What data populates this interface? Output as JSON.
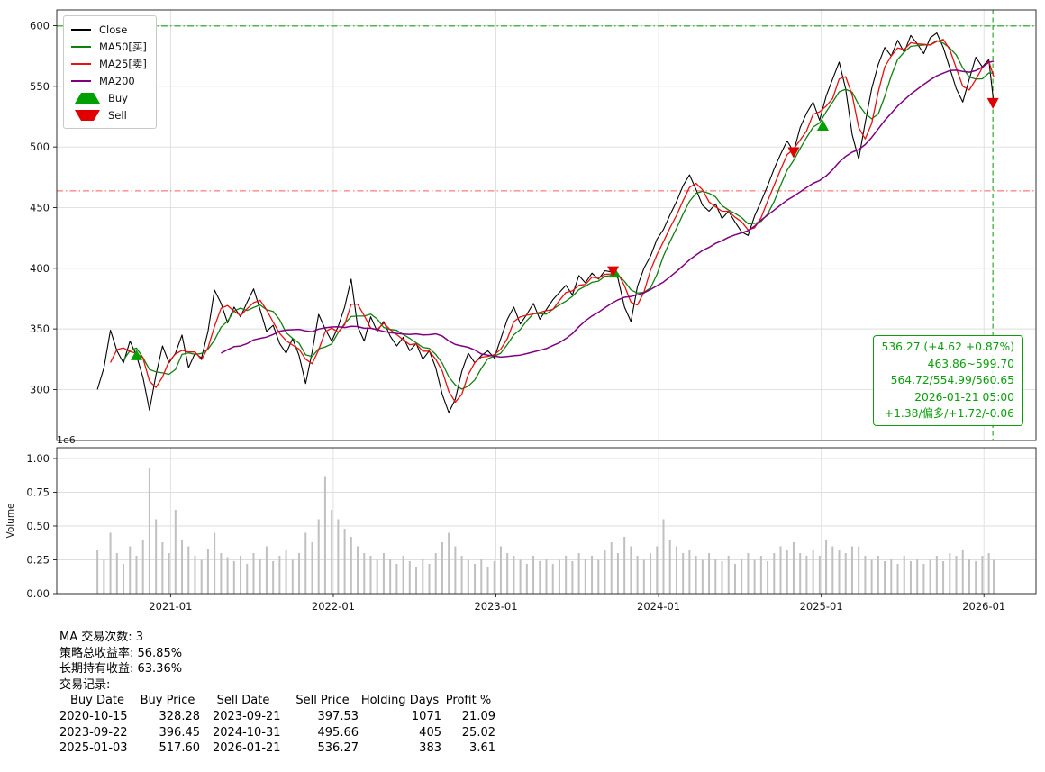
{
  "chart_data": [
    {
      "type": "line",
      "title": "",
      "xlim": [
        2020.3,
        2026.32
      ],
      "ylim": [
        258,
        613
      ],
      "yticks": [
        300,
        350,
        400,
        450,
        500,
        550,
        600
      ],
      "xticks": {
        "values": [
          2021,
          2022,
          2023,
          2024,
          2025,
          2026
        ],
        "labels": [
          "2021-01",
          "2022-01",
          "2023-01",
          "2024-01",
          "2025-01",
          "2026-01"
        ]
      },
      "grid": true,
      "x": [
        2020.55,
        2020.59,
        2020.63,
        2020.67,
        2020.71,
        2020.75,
        2020.79,
        2020.83,
        2020.87,
        2020.91,
        2020.95,
        2020.99,
        2021.03,
        2021.07,
        2021.11,
        2021.15,
        2021.19,
        2021.23,
        2021.27,
        2021.31,
        2021.35,
        2021.39,
        2021.43,
        2021.47,
        2021.51,
        2021.55,
        2021.59,
        2021.63,
        2021.67,
        2021.71,
        2021.75,
        2021.79,
        2021.83,
        2021.87,
        2021.91,
        2021.95,
        2021.99,
        2022.03,
        2022.07,
        2022.11,
        2022.15,
        2022.19,
        2022.23,
        2022.27,
        2022.31,
        2022.35,
        2022.39,
        2022.43,
        2022.47,
        2022.51,
        2022.55,
        2022.59,
        2022.63,
        2022.67,
        2022.71,
        2022.75,
        2022.79,
        2022.83,
        2022.87,
        2022.91,
        2022.95,
        2022.99,
        2023.03,
        2023.07,
        2023.11,
        2023.15,
        2023.19,
        2023.23,
        2023.27,
        2023.31,
        2023.35,
        2023.39,
        2023.43,
        2023.47,
        2023.51,
        2023.55,
        2023.59,
        2023.63,
        2023.67,
        2023.71,
        2023.75,
        2023.79,
        2023.83,
        2023.87,
        2023.91,
        2023.95,
        2023.99,
        2024.03,
        2024.07,
        2024.11,
        2024.15,
        2024.19,
        2024.23,
        2024.27,
        2024.31,
        2024.35,
        2024.39,
        2024.43,
        2024.47,
        2024.51,
        2024.55,
        2024.59,
        2024.63,
        2024.67,
        2024.71,
        2024.75,
        2024.79,
        2024.83,
        2024.87,
        2024.91,
        2024.95,
        2024.99,
        2025.03,
        2025.07,
        2025.11,
        2025.15,
        2025.19,
        2025.23,
        2025.27,
        2025.31,
        2025.35,
        2025.39,
        2025.43,
        2025.47,
        2025.51,
        2025.55,
        2025.59,
        2025.63,
        2025.67,
        2025.71,
        2025.75,
        2025.79,
        2025.83,
        2025.87,
        2025.91,
        2025.95,
        2025.99,
        2026.03,
        2026.06
      ],
      "series": [
        {
          "name": "Close",
          "color": "#000000",
          "values": [
            300,
            318,
            349,
            332,
            322,
            340,
            328,
            310,
            283,
            312,
            336,
            322,
            330,
            345,
            318,
            330,
            326,
            348,
            382,
            371,
            355,
            368,
            360,
            372,
            383,
            366,
            348,
            353,
            338,
            330,
            342,
            328,
            305,
            331,
            362,
            350,
            340,
            352,
            368,
            391,
            352,
            340,
            360,
            348,
            356,
            344,
            336,
            343,
            332,
            338,
            325,
            332,
            318,
            296,
            281,
            292,
            315,
            330,
            322,
            328,
            332,
            326,
            342,
            358,
            368,
            354,
            362,
            371,
            358,
            366,
            374,
            380,
            386,
            378,
            394,
            388,
            396,
            391,
            398,
            397,
            392,
            368,
            356,
            385,
            400,
            410,
            424,
            432,
            444,
            455,
            468,
            477,
            465,
            452,
            447,
            453,
            441,
            447,
            438,
            430,
            427,
            443,
            455,
            468,
            482,
            494,
            505,
            496,
            516,
            528,
            537,
            522,
            542,
            556,
            570,
            548,
            510,
            490,
            520,
            548,
            568,
            582,
            575,
            588,
            578,
            592,
            585,
            577,
            590,
            594,
            582,
            565,
            548,
            537,
            556,
            574,
            566,
            572,
            536
          ]
        },
        {
          "name": "MA50[买]",
          "color": "#108010",
          "derived_from": "Close",
          "rolling_window_points": 5
        },
        {
          "name": "MA25[卖]",
          "color": "#e81010",
          "derived_from": "Close",
          "rolling_window_points": 3
        },
        {
          "name": "MA200",
          "color": "#800080",
          "derived_from": "Close",
          "rolling_window_points": 20
        }
      ],
      "markers": [
        {
          "name": "Buy",
          "shape": "triangle-up",
          "color": "#00a000",
          "points": [
            [
              2020.79,
              328.28
            ],
            [
              2023.73,
              396.45
            ],
            [
              2025.01,
              517.6
            ]
          ]
        },
        {
          "name": "Sell",
          "shape": "triangle-down",
          "color": "#e00000",
          "points": [
            [
              2023.72,
              397.53
            ],
            [
              2024.83,
              495.66
            ],
            [
              2026.055,
              536.27
            ]
          ]
        }
      ],
      "hlines": [
        {
          "value": 599.7,
          "color": "#00a000",
          "style": "dashdot"
        },
        {
          "value": 463.86,
          "color": "#ff5a5a",
          "style": "dashdot"
        }
      ],
      "vline": {
        "x": 2026.055,
        "color": "#2daa2d",
        "style": "dashed"
      },
      "legend": {
        "items": [
          {
            "label": "Close",
            "type": "line",
            "color": "#000000"
          },
          {
            "label": "MA50[买]",
            "type": "line",
            "color": "#108010"
          },
          {
            "label": "MA25[卖]",
            "type": "line",
            "color": "#e81010"
          },
          {
            "label": "MA200",
            "type": "line",
            "color": "#800080"
          },
          {
            "label": "Buy",
            "type": "triangle-up",
            "color": "#00a000"
          },
          {
            "label": "Sell",
            "type": "triangle-down",
            "color": "#e00000"
          }
        ]
      },
      "annotation": {
        "color": "#0a9e0a",
        "lines": [
          "536.27 (+4.62 +0.87%)",
          "463.86~599.70",
          "564.72/554.99/560.65",
          "2026-01-21 05:00",
          "+1.38/偏多/+1.72/-0.06"
        ]
      }
    },
    {
      "type": "bar",
      "ylabel": "Volume",
      "offset_label": "1e6",
      "bar_color": "#c0c0c0",
      "x_ref": "shared-with-price-chart",
      "ylim": [
        0,
        1.08
      ],
      "yticks": {
        "values": [
          0,
          0.25,
          0.5,
          0.75,
          1.0
        ],
        "labels": [
          "0.00",
          "0.25",
          "0.50",
          "0.75",
          "1.00"
        ]
      },
      "values": [
        0.32,
        0.25,
        0.45,
        0.3,
        0.22,
        0.35,
        0.28,
        0.4,
        0.93,
        0.55,
        0.38,
        0.3,
        0.62,
        0.4,
        0.35,
        0.28,
        0.25,
        0.33,
        0.45,
        0.3,
        0.27,
        0.24,
        0.28,
        0.22,
        0.3,
        0.26,
        0.35,
        0.24,
        0.28,
        0.32,
        0.25,
        0.3,
        0.45,
        0.38,
        0.55,
        0.87,
        0.62,
        0.55,
        0.48,
        0.42,
        0.35,
        0.3,
        0.28,
        0.25,
        0.3,
        0.26,
        0.22,
        0.28,
        0.24,
        0.2,
        0.26,
        0.22,
        0.3,
        0.38,
        0.45,
        0.35,
        0.28,
        0.25,
        0.22,
        0.26,
        0.2,
        0.24,
        0.35,
        0.3,
        0.28,
        0.25,
        0.22,
        0.28,
        0.24,
        0.26,
        0.22,
        0.25,
        0.28,
        0.24,
        0.3,
        0.26,
        0.28,
        0.25,
        0.32,
        0.38,
        0.3,
        0.42,
        0.35,
        0.28,
        0.25,
        0.3,
        0.35,
        0.55,
        0.4,
        0.35,
        0.3,
        0.32,
        0.28,
        0.25,
        0.3,
        0.26,
        0.24,
        0.28,
        0.22,
        0.26,
        0.3,
        0.25,
        0.28,
        0.24,
        0.3,
        0.35,
        0.32,
        0.38,
        0.3,
        0.28,
        0.32,
        0.28,
        0.4,
        0.35,
        0.32,
        0.3,
        0.35,
        0.35,
        0.28,
        0.25,
        0.28,
        0.24,
        0.26,
        0.22,
        0.28,
        0.24,
        0.26,
        0.22,
        0.25,
        0.28,
        0.24,
        0.3,
        0.28,
        0.32,
        0.26,
        0.24,
        0.28,
        0.3,
        0.25
      ]
    }
  ],
  "style": {
    "grid_color": "#dedede",
    "spine_color": "#1a1a1a"
  },
  "stats": {
    "lines": [
      "MA 交易次数: 3",
      "策略总收益率: 56.85%",
      "长期持有收益: 63.36%",
      "交易记录:"
    ],
    "table": {
      "headers": [
        "Buy Date",
        "Buy Price",
        "Sell Date",
        "Sell Price",
        "Holding Days",
        "Profit %"
      ],
      "rows": [
        [
          "2020-10-15",
          "328.28",
          "2023-09-21",
          "397.53",
          "1071",
          "21.09"
        ],
        [
          "2023-09-22",
          "396.45",
          "2024-10-31",
          "495.66",
          "405",
          "25.02"
        ],
        [
          "2025-01-03",
          "517.60",
          "2026-01-21",
          "536.27",
          "383",
          "3.61"
        ]
      ]
    }
  }
}
